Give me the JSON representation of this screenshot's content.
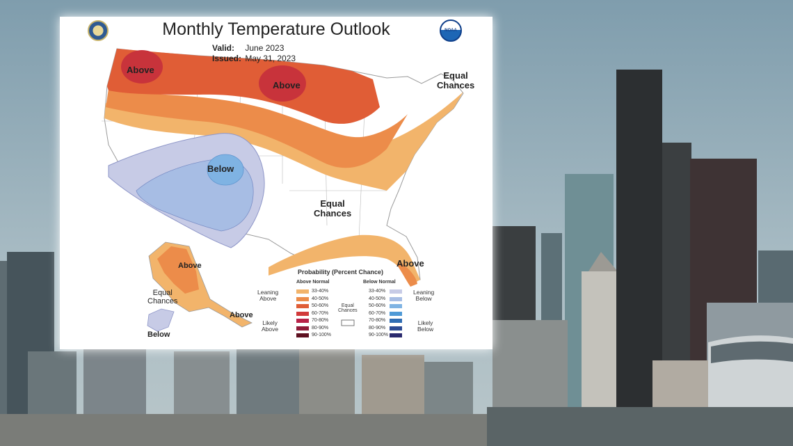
{
  "outlook": {
    "title": "Monthly Temperature Outlook",
    "valid_label": "Valid:",
    "valid_value": "June 2023",
    "issued_label": "Issued:",
    "issued_value": "May 31, 2023",
    "logos": {
      "left": "department-of-commerce-seal",
      "right": "noaa-logo",
      "right_text": "NOAA"
    }
  },
  "regions": {
    "above_nw": "Above",
    "above_mw": "Above",
    "below_sw": "Below",
    "equal_ne": "Equal\nChances",
    "equal_center": "Equal\nChances",
    "above_fl": "Above",
    "above_ak": "Above",
    "above_ak_se": "Above",
    "equal_ak": "Equal\nChances",
    "below_ak": "Below"
  },
  "legend": {
    "title": "Probability (Percent Chance)",
    "above_header": "Above Normal",
    "below_header": "Below Normal",
    "leaning_above": "Leaning\nAbove",
    "likely_above": "Likely\nAbove",
    "leaning_below": "Leaning\nBelow",
    "likely_below": "Likely\nBelow",
    "equal_chances": "Equal\nChances",
    "above": [
      {
        "range": "33-40%",
        "color": "#f2b46b"
      },
      {
        "range": "40-50%",
        "color": "#ec8c4a"
      },
      {
        "range": "50-60%",
        "color": "#e05d36"
      },
      {
        "range": "60-70%",
        "color": "#d13a3a"
      },
      {
        "range": "70-80%",
        "color": "#b82248"
      },
      {
        "range": "80-90%",
        "color": "#8f1a38"
      },
      {
        "range": "90-100%",
        "color": "#5e1020"
      }
    ],
    "below": [
      {
        "range": "33-40%",
        "color": "#c7cbe6"
      },
      {
        "range": "40-50%",
        "color": "#a7bde4"
      },
      {
        "range": "50-60%",
        "color": "#7fb3e3"
      },
      {
        "range": "60-70%",
        "color": "#4f9ad6"
      },
      {
        "range": "70-80%",
        "color": "#2f6db3"
      },
      {
        "range": "80-90%",
        "color": "#2b4a93"
      },
      {
        "range": "90-100%",
        "color": "#2a2a6e"
      }
    ]
  }
}
